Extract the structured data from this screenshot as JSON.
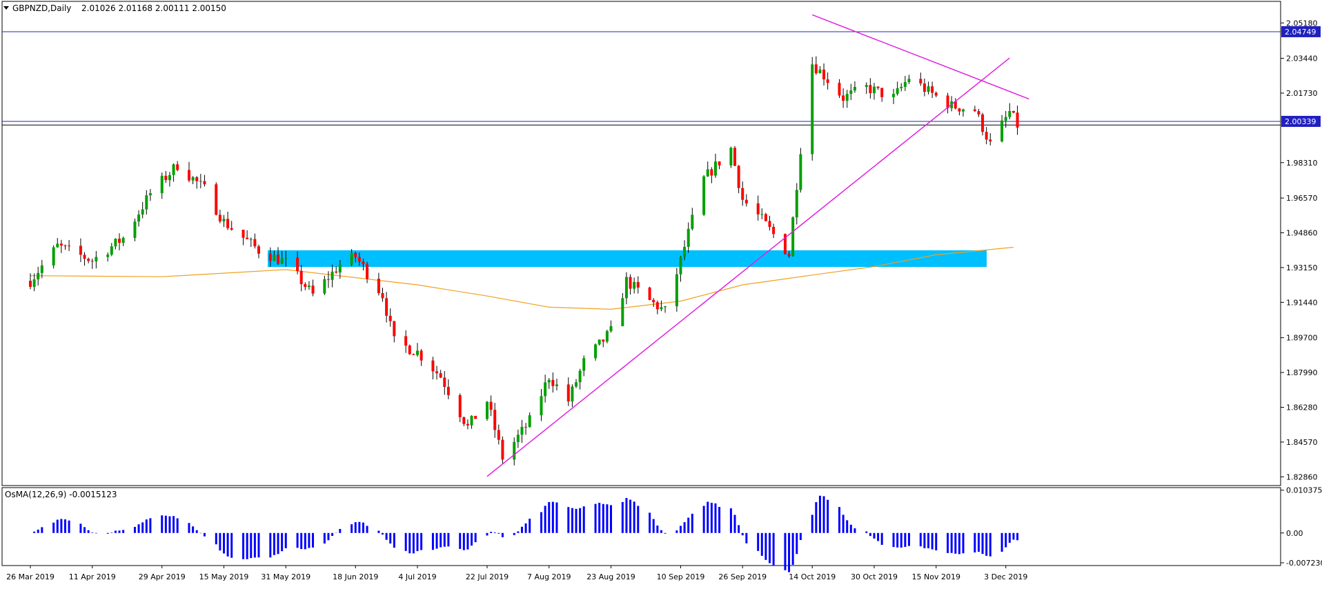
{
  "header": {
    "symbol": "GBPNZD,Daily",
    "ohlc": "2.01026 2.01168 2.00111 2.00150"
  },
  "indicator": {
    "label": "OsMA(12,26,9) -0.0015123"
  },
  "colors": {
    "bull": "#00a000",
    "bear": "#ff0000",
    "trendline": "#e020e0",
    "ma": "#f0a020",
    "zone": "#00bfff",
    "hline": "#2020c0",
    "osma": "#0000ff",
    "price_tag_bg": "#2020c0"
  },
  "chart_data": [
    {
      "type": "candlestick",
      "title": "GBPNZD,Daily",
      "y_ticks": [
        "2.05180",
        "2.03440",
        "2.01730",
        "1.98310",
        "1.96570",
        "1.94860",
        "1.93150",
        "1.91440",
        "1.89700",
        "1.87990",
        "1.86280",
        "1.84570",
        "1.82860"
      ],
      "ylim": [
        1.8243,
        2.0624
      ],
      "x_ticks": [
        "26 Mar 2019",
        "11 Apr 2019",
        "29 Apr 2019",
        "15 May 2019",
        "31 May 2019",
        "18 Jun 2019",
        "4 Jul 2019",
        "22 Jul 2019",
        "7 Aug 2019",
        "23 Aug 2019",
        "10 Sep 2019",
        "26 Sep 2019",
        "14 Oct 2019",
        "30 Oct 2019",
        "15 Nov 2019",
        "3 Dec 2019"
      ],
      "price_tags": [
        {
          "label": "2.04749",
          "value": 2.04749
        },
        {
          "label": "2.00339",
          "value": 2.00339
        }
      ],
      "horizontal_lines": [
        2.04749,
        2.00339,
        2.0016
      ],
      "zone": {
        "from": 1.9318,
        "to": 1.94
      },
      "trendlines": [
        {
          "from": [
            "22 Jul 2019",
            1.8288
          ],
          "to": [
            "4 Dec 2019",
            2.0346
          ]
        },
        {
          "from": [
            "14 Oct 2019",
            2.0558
          ],
          "to": [
            "9 Dec 2019",
            2.0144
          ]
        }
      ],
      "moving_average": [
        [
          "26 Mar 2019",
          1.9275
        ],
        [
          "29 Apr 2019",
          1.927
        ],
        [
          "31 May 2019",
          1.9305
        ],
        [
          "4 Jul 2019",
          1.923
        ],
        [
          "22 Jul 2019",
          1.9175
        ],
        [
          "7 Aug 2019",
          1.912
        ],
        [
          "23 Aug 2019",
          1.911
        ],
        [
          "10 Sep 2019",
          1.915
        ],
        [
          "26 Sep 2019",
          1.923
        ],
        [
          "14 Oct 2019",
          1.9278
        ],
        [
          "30 Oct 2019",
          1.932
        ],
        [
          "15 Nov 2019",
          1.9378
        ],
        [
          "5 Dec 2019",
          1.9415
        ]
      ],
      "anchors": [
        [
          "26 Mar 2019",
          1.925
        ],
        [
          "2 Apr 2019",
          1.942
        ],
        [
          "11 Apr 2019",
          1.935
        ],
        [
          "19 Apr 2019",
          1.946
        ],
        [
          "26 Apr 2019",
          1.968
        ],
        [
          "3 May 2019",
          1.982
        ],
        [
          "10 May 2019",
          1.97
        ],
        [
          "15 May 2019",
          1.954
        ],
        [
          "24 May 2019",
          1.94
        ],
        [
          "31 May 2019",
          1.934
        ],
        [
          "7 Jun 2019",
          1.918
        ],
        [
          "14 Jun 2019",
          1.933
        ],
        [
          "18 Jun 2019",
          1.937
        ],
        [
          "25 Jun 2019",
          1.918
        ],
        [
          "28 Jun 2019",
          1.895
        ],
        [
          "4 Jul 2019",
          1.89
        ],
        [
          "10 Jul 2019",
          1.878
        ],
        [
          "17 Jul 2019",
          1.853
        ],
        [
          "22 Jul 2019",
          1.866
        ],
        [
          "26 Jul 2019",
          1.838
        ],
        [
          "2 Aug 2019",
          1.856
        ],
        [
          "7 Aug 2019",
          1.878
        ],
        [
          "12 Aug 2019",
          1.866
        ],
        [
          "16 Aug 2019",
          1.885
        ],
        [
          "23 Aug 2019",
          1.9
        ],
        [
          "27 Aug 2019",
          1.925
        ],
        [
          "2 Sep 2019",
          1.915
        ],
        [
          "6 Sep 2019",
          1.91
        ],
        [
          "10 Sep 2019",
          1.935
        ],
        [
          "16 Sep 2019",
          1.975
        ],
        [
          "23 Sep 2019",
          1.99
        ],
        [
          "26 Sep 2019",
          1.965
        ],
        [
          "1 Oct 2019",
          1.955
        ],
        [
          "8 Oct 2019",
          1.938
        ],
        [
          "11 Oct 2019",
          1.99
        ],
        [
          "14 Oct 2019",
          2.032
        ],
        [
          "17 Oct 2019",
          2.026
        ],
        [
          "22 Oct 2019",
          2.015
        ],
        [
          "28 Oct 2019",
          2.02
        ],
        [
          "4 Nov 2019",
          2.015
        ],
        [
          "8 Nov 2019",
          2.025
        ],
        [
          "13 Nov 2019",
          2.018
        ],
        [
          "19 Nov 2019",
          2.011
        ],
        [
          "25 Nov 2019",
          2.009
        ],
        [
          "29 Nov 2019",
          1.992
        ],
        [
          "4 Dec 2019",
          2.008
        ],
        [
          "6 Dec 2019",
          2.0015
        ]
      ]
    },
    {
      "type": "bar",
      "title": "OsMA(12,26,9) -0.0015123",
      "y_ticks": [
        "0.0103752",
        "0.00",
        "-0.0072309"
      ],
      "ylim": [
        -0.0079,
        0.011
      ],
      "bar_color": "#0000ff"
    }
  ]
}
